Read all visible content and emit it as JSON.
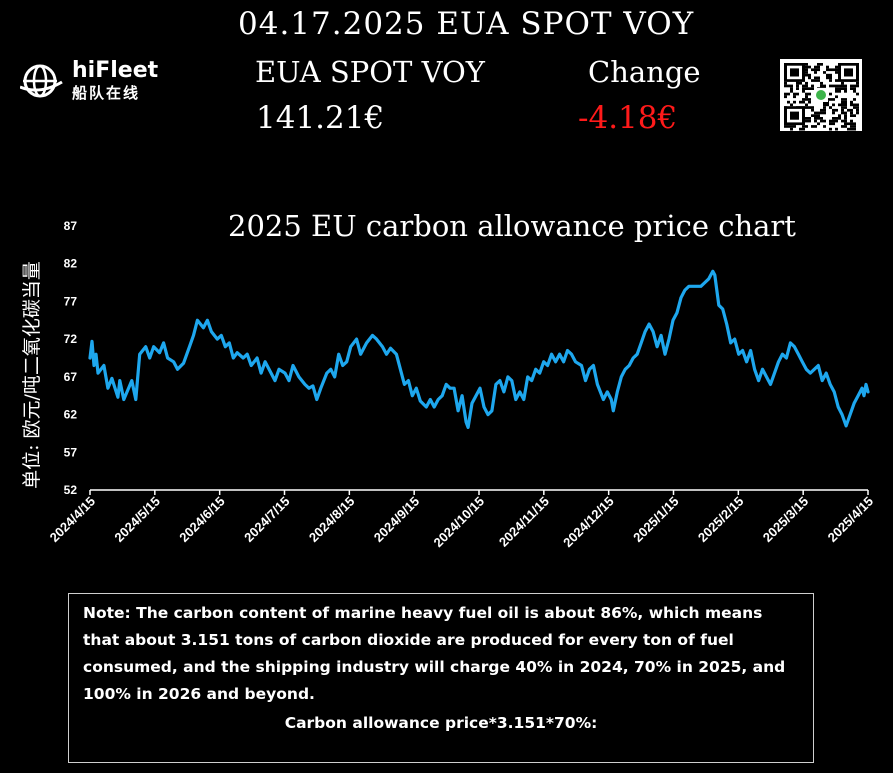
{
  "header": {
    "date_title": "04.17.2025 EUA SPOT VOY",
    "instrument_label": "EUA SPOT VOY",
    "change_label": "Change",
    "price_value": "141.21€",
    "change_value": "-4.18€"
  },
  "logo": {
    "name": "hiFleet",
    "subtitle": "船队在线",
    "icon": "globe-ship-logo-icon"
  },
  "qr": {
    "icon": "qr-code-icon"
  },
  "colors": {
    "line": "#1ea7ee",
    "change_negative": "#ff1a1a",
    "background": "#000000",
    "text": "#ffffff"
  },
  "chart_data": {
    "type": "line",
    "title": "2025 EU carbon allowance price chart",
    "ylabel": "单位: 欧元/吨二氧化碳当量",
    "xlabel": "",
    "ylim": [
      52,
      87
    ],
    "yticks": [
      52,
      57,
      62,
      67,
      72,
      77,
      82,
      87
    ],
    "xticks": [
      "2024/4/15",
      "2024/5/15",
      "2024/6/15",
      "2024/7/15",
      "2024/8/15",
      "2024/9/15",
      "2024/10/15",
      "2024/11/15",
      "2024/12/15",
      "2025/1/15",
      "2025/2/15",
      "2025/3/15",
      "2025/4/15"
    ],
    "grid": false,
    "series": [
      {
        "values": [
          [
            "2024-04-15",
            69.5
          ],
          [
            "2024-04-16",
            71.7
          ],
          [
            "2024-04-17",
            68.5
          ],
          [
            "2024-04-18",
            70.0
          ],
          [
            "2024-04-19",
            67.5
          ],
          [
            "2024-04-22",
            68.5
          ],
          [
            "2024-04-24",
            65.5
          ],
          [
            "2024-04-26",
            66.8
          ],
          [
            "2024-04-29",
            64.3
          ],
          [
            "2024-04-30",
            66.5
          ],
          [
            "2024-05-02",
            64.0
          ],
          [
            "2024-05-06",
            66.5
          ],
          [
            "2024-05-08",
            64.0
          ],
          [
            "2024-05-10",
            70.0
          ],
          [
            "2024-05-13",
            71.0
          ],
          [
            "2024-05-15",
            69.5
          ],
          [
            "2024-05-17",
            71.0
          ],
          [
            "2024-05-20",
            70.2
          ],
          [
            "2024-05-22",
            71.5
          ],
          [
            "2024-05-24",
            69.5
          ],
          [
            "2024-05-27",
            69.0
          ],
          [
            "2024-05-29",
            68.0
          ],
          [
            "2024-06-01",
            68.8
          ],
          [
            "2024-06-04",
            71.0
          ],
          [
            "2024-06-06",
            72.5
          ],
          [
            "2024-06-08",
            74.5
          ],
          [
            "2024-06-11",
            73.5
          ],
          [
            "2024-06-13",
            74.5
          ],
          [
            "2024-06-15",
            73.0
          ],
          [
            "2024-06-18",
            72.0
          ],
          [
            "2024-06-20",
            72.5
          ],
          [
            "2024-06-22",
            71.0
          ],
          [
            "2024-06-24",
            71.5
          ],
          [
            "2024-06-26",
            69.5
          ],
          [
            "2024-06-28",
            70.2
          ],
          [
            "2024-07-01",
            69.5
          ],
          [
            "2024-07-03",
            70.0
          ],
          [
            "2024-07-05",
            68.5
          ],
          [
            "2024-07-08",
            69.5
          ],
          [
            "2024-07-10",
            67.5
          ],
          [
            "2024-07-12",
            69.0
          ],
          [
            "2024-07-15",
            67.5
          ],
          [
            "2024-07-17",
            66.5
          ],
          [
            "2024-07-19",
            68.0
          ],
          [
            "2024-07-22",
            67.5
          ],
          [
            "2024-07-24",
            66.5
          ],
          [
            "2024-07-26",
            68.5
          ],
          [
            "2024-07-29",
            67.0
          ],
          [
            "2024-08-01",
            66.0
          ],
          [
            "2024-08-03",
            65.5
          ],
          [
            "2024-08-05",
            65.8
          ],
          [
            "2024-08-07",
            64.0
          ],
          [
            "2024-08-09",
            65.5
          ],
          [
            "2024-08-12",
            67.5
          ],
          [
            "2024-08-14",
            68.0
          ],
          [
            "2024-08-16",
            67.0
          ],
          [
            "2024-08-18",
            70.0
          ],
          [
            "2024-08-20",
            68.5
          ],
          [
            "2024-08-22",
            69.0
          ],
          [
            "2024-08-24",
            71.0
          ],
          [
            "2024-08-27",
            72.0
          ],
          [
            "2024-08-29",
            70.0
          ],
          [
            "2024-09-01",
            71.5
          ],
          [
            "2024-09-04",
            72.5
          ],
          [
            "2024-09-06",
            72.0
          ],
          [
            "2024-09-09",
            71.0
          ],
          [
            "2024-09-11",
            70.0
          ],
          [
            "2024-09-13",
            70.8
          ],
          [
            "2024-09-16",
            70.0
          ],
          [
            "2024-09-18",
            68.0
          ],
          [
            "2024-09-20",
            66.0
          ],
          [
            "2024-09-22",
            66.5
          ],
          [
            "2024-09-24",
            64.5
          ],
          [
            "2024-09-26",
            65.5
          ],
          [
            "2024-09-28",
            63.8
          ],
          [
            "2024-10-01",
            63.0
          ],
          [
            "2024-10-03",
            64.0
          ],
          [
            "2024-10-05",
            63.0
          ],
          [
            "2024-10-07",
            64.0
          ],
          [
            "2024-10-09",
            64.5
          ],
          [
            "2024-10-11",
            66.0
          ],
          [
            "2024-10-13",
            65.5
          ],
          [
            "2024-10-15",
            65.5
          ],
          [
            "2024-10-17",
            62.5
          ],
          [
            "2024-10-19",
            64.5
          ],
          [
            "2024-10-21",
            61.0
          ],
          [
            "2024-10-22",
            60.3
          ],
          [
            "2024-10-24",
            63.5
          ],
          [
            "2024-10-26",
            64.5
          ],
          [
            "2024-10-28",
            65.5
          ],
          [
            "2024-10-30",
            63.0
          ],
          [
            "2024-11-01",
            62.0
          ],
          [
            "2024-11-03",
            62.5
          ],
          [
            "2024-11-05",
            66.0
          ],
          [
            "2024-11-07",
            66.5
          ],
          [
            "2024-11-09",
            65.0
          ],
          [
            "2024-11-11",
            67.0
          ],
          [
            "2024-11-13",
            66.5
          ],
          [
            "2024-11-15",
            64.0
          ],
          [
            "2024-11-17",
            65.0
          ],
          [
            "2024-11-19",
            64.0
          ],
          [
            "2024-11-21",
            67.0
          ],
          [
            "2024-11-23",
            66.5
          ],
          [
            "2024-11-25",
            68.0
          ],
          [
            "2024-11-27",
            67.5
          ],
          [
            "2024-11-29",
            69.0
          ],
          [
            "2024-12-01",
            68.5
          ],
          [
            "2024-12-03",
            70.0
          ],
          [
            "2024-12-05",
            69.0
          ],
          [
            "2024-12-07",
            70.0
          ],
          [
            "2024-12-09",
            69.0
          ],
          [
            "2024-12-11",
            70.5
          ],
          [
            "2024-12-13",
            70.0
          ],
          [
            "2024-12-15",
            69.0
          ],
          [
            "2024-12-18",
            68.5
          ],
          [
            "2024-12-20",
            66.5
          ],
          [
            "2024-12-22",
            68.0
          ],
          [
            "2024-12-24",
            68.5
          ],
          [
            "2024-12-26",
            66.0
          ],
          [
            "2024-12-29",
            64.0
          ],
          [
            "2024-12-31",
            65.0
          ],
          [
            "2025-01-02",
            64.0
          ],
          [
            "2025-01-03",
            62.5
          ],
          [
            "2025-01-05",
            65.0
          ],
          [
            "2025-01-07",
            67.0
          ],
          [
            "2025-01-09",
            68.0
          ],
          [
            "2025-01-11",
            68.5
          ],
          [
            "2025-01-13",
            69.5
          ],
          [
            "2025-01-15",
            70.0
          ],
          [
            "2025-01-17",
            71.5
          ],
          [
            "2025-01-19",
            73.0
          ],
          [
            "2025-01-21",
            74.0
          ],
          [
            "2025-01-23",
            73.0
          ],
          [
            "2025-01-25",
            71.0
          ],
          [
            "2025-01-27",
            72.5
          ],
          [
            "2025-01-29",
            70.0
          ],
          [
            "2025-01-31",
            72.0
          ],
          [
            "2025-02-02",
            74.5
          ],
          [
            "2025-02-04",
            75.5
          ],
          [
            "2025-02-06",
            77.5
          ],
          [
            "2025-02-08",
            78.5
          ],
          [
            "2025-02-10",
            79.0
          ],
          [
            "2025-02-12",
            79.0
          ],
          [
            "2025-02-14",
            79.0
          ],
          [
            "2025-02-16",
            79.0
          ],
          [
            "2025-02-18",
            79.5
          ],
          [
            "2025-02-20",
            80.0
          ],
          [
            "2025-02-22",
            81.0
          ],
          [
            "2025-02-23",
            80.5
          ],
          [
            "2025-02-25",
            76.5
          ],
          [
            "2025-02-27",
            76.0
          ],
          [
            "2025-03-01",
            74.0
          ],
          [
            "2025-03-03",
            71.5
          ],
          [
            "2025-03-05",
            72.0
          ],
          [
            "2025-03-07",
            70.0
          ],
          [
            "2025-03-09",
            70.5
          ],
          [
            "2025-03-11",
            69.0
          ],
          [
            "2025-03-13",
            70.5
          ],
          [
            "2025-03-15",
            68.0
          ],
          [
            "2025-03-17",
            66.5
          ],
          [
            "2025-03-19",
            68.0
          ],
          [
            "2025-03-21",
            67.0
          ],
          [
            "2025-03-23",
            66.0
          ],
          [
            "2025-03-25",
            67.5
          ],
          [
            "2025-03-27",
            69.0
          ],
          [
            "2025-03-29",
            70.0
          ],
          [
            "2025-03-31",
            69.5
          ],
          [
            "2025-04-02",
            71.5
          ],
          [
            "2025-04-04",
            71.0
          ],
          [
            "2025-04-06",
            70.0
          ],
          [
            "2025-04-08",
            69.0
          ],
          [
            "2025-04-10",
            68.0
          ],
          [
            "2025-04-12",
            67.5
          ],
          [
            "2025-04-14",
            68.0
          ],
          [
            "2025-04-16",
            68.5
          ],
          [
            "2025-04-18",
            66.5
          ],
          [
            "2025-04-20",
            67.5
          ],
          [
            "2025-04-22",
            66.0
          ],
          [
            "2025-04-24",
            65.0
          ],
          [
            "2025-04-26",
            63.0
          ],
          [
            "2025-04-28",
            62.0
          ],
          [
            "2025-04-30",
            60.5
          ],
          [
            "2025-05-02",
            62.0
          ],
          [
            "2025-05-04",
            63.5
          ],
          [
            "2025-05-06",
            64.5
          ],
          [
            "2025-05-08",
            65.5
          ],
          [
            "2025-05-09",
            64.5
          ],
          [
            "2025-05-10",
            66.0
          ],
          [
            "2025-05-11",
            65.0
          ]
        ]
      }
    ]
  },
  "note": {
    "text": "Note: The carbon content of marine heavy fuel oil is about 86%, which means that about 3.151 tons of carbon dioxide are produced for every ton of fuel consumed, and the shipping industry will charge 40% in 2024, 70% in 2025, and 100% in 2026 and beyond.",
    "formula": "Carbon allowance price*3.151*70%:"
  }
}
